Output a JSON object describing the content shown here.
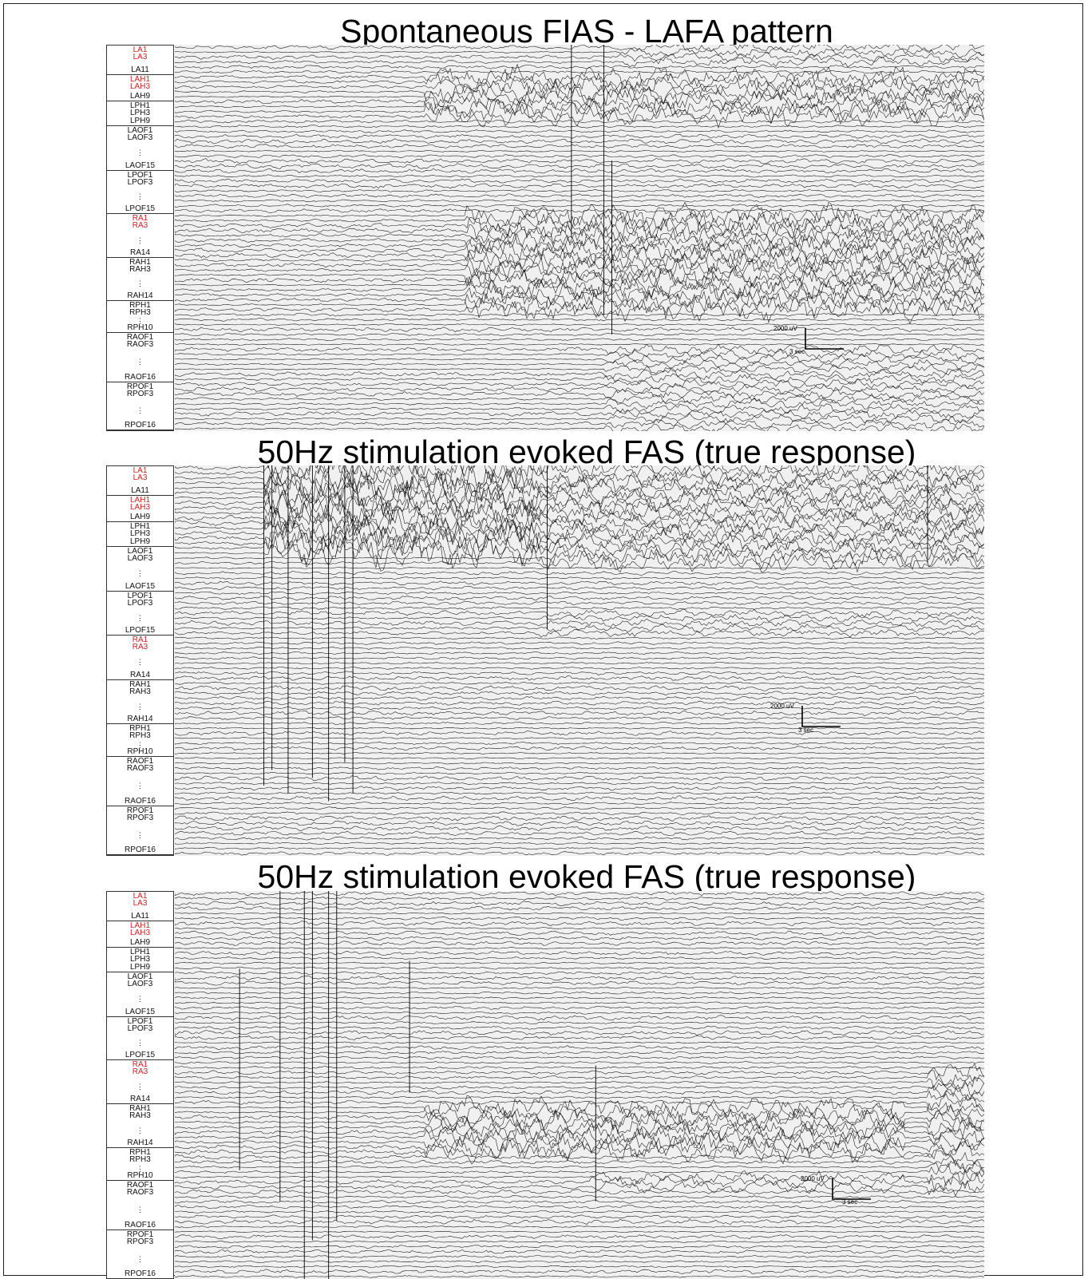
{
  "panels": [
    {
      "title": "Spontaneous FIAS - LAFA pattern",
      "scale": {
        "amplitude": "2000 uV",
        "time": "3 sec"
      }
    },
    {
      "title": "50Hz stimulation evoked FAS (true response)",
      "scale": {
        "amplitude": "2000 uV",
        "time": "3 sec"
      }
    },
    {
      "title": "50Hz stimulation evoked FAS (true response)",
      "scale": {
        "amplitude": "2000 uV",
        "time": "3 sec"
      }
    }
  ],
  "channel_groups": [
    {
      "labels": [
        {
          "t": "LA1",
          "red": true
        },
        {
          "t": "LA3",
          "red": true
        },
        {
          "t": "LA11",
          "red": false
        }
      ]
    },
    {
      "labels": [
        {
          "t": "LAH1",
          "red": true
        },
        {
          "t": "LAH3",
          "red": true
        },
        {
          "t": "LAH9",
          "red": false
        }
      ]
    },
    {
      "labels": [
        {
          "t": "LPH1",
          "red": false
        },
        {
          "t": "LPH3",
          "red": false
        },
        {
          "t": "LPH9",
          "red": false
        }
      ]
    },
    {
      "labels": [
        {
          "t": "LAOF1",
          "red": false
        },
        {
          "t": "LAOF3",
          "red": false
        },
        {
          "t": "⋮",
          "red": false
        },
        {
          "t": "LAOF15",
          "red": false
        }
      ]
    },
    {
      "labels": [
        {
          "t": "LPOF1",
          "red": false
        },
        {
          "t": "LPOF3",
          "red": false
        },
        {
          "t": "⋮",
          "red": false
        },
        {
          "t": "LPOF15",
          "red": false
        }
      ]
    },
    {
      "labels": [
        {
          "t": "RA1",
          "red": true
        },
        {
          "t": "RA3",
          "red": true
        },
        {
          "t": "⋮",
          "red": false
        },
        {
          "t": "RA14",
          "red": false
        }
      ]
    },
    {
      "labels": [
        {
          "t": "RAH1",
          "red": false
        },
        {
          "t": "RAH3",
          "red": false
        },
        {
          "t": "⋮",
          "red": false
        },
        {
          "t": "RAH14",
          "red": false
        }
      ]
    },
    {
      "labels": [
        {
          "t": "RPH1",
          "red": false
        },
        {
          "t": "RPH3",
          "red": false
        },
        {
          "t": "⋮",
          "red": false
        },
        {
          "t": "RPH10",
          "red": false
        }
      ]
    },
    {
      "labels": [
        {
          "t": "RAOF1",
          "red": false
        },
        {
          "t": "RAOF3",
          "red": false
        },
        {
          "t": "⋮",
          "red": false
        },
        {
          "t": "RAOF16",
          "red": false
        }
      ]
    },
    {
      "labels": [
        {
          "t": "RPOF1",
          "red": false
        },
        {
          "t": "RPOF3",
          "red": false
        },
        {
          "t": "⋮",
          "red": false
        },
        {
          "t": "RPOF16",
          "red": false
        }
      ]
    }
  ],
  "colors": {
    "label_red": "#d42020",
    "trace": "#111111",
    "trace_bg": "#f0f0f0"
  }
}
